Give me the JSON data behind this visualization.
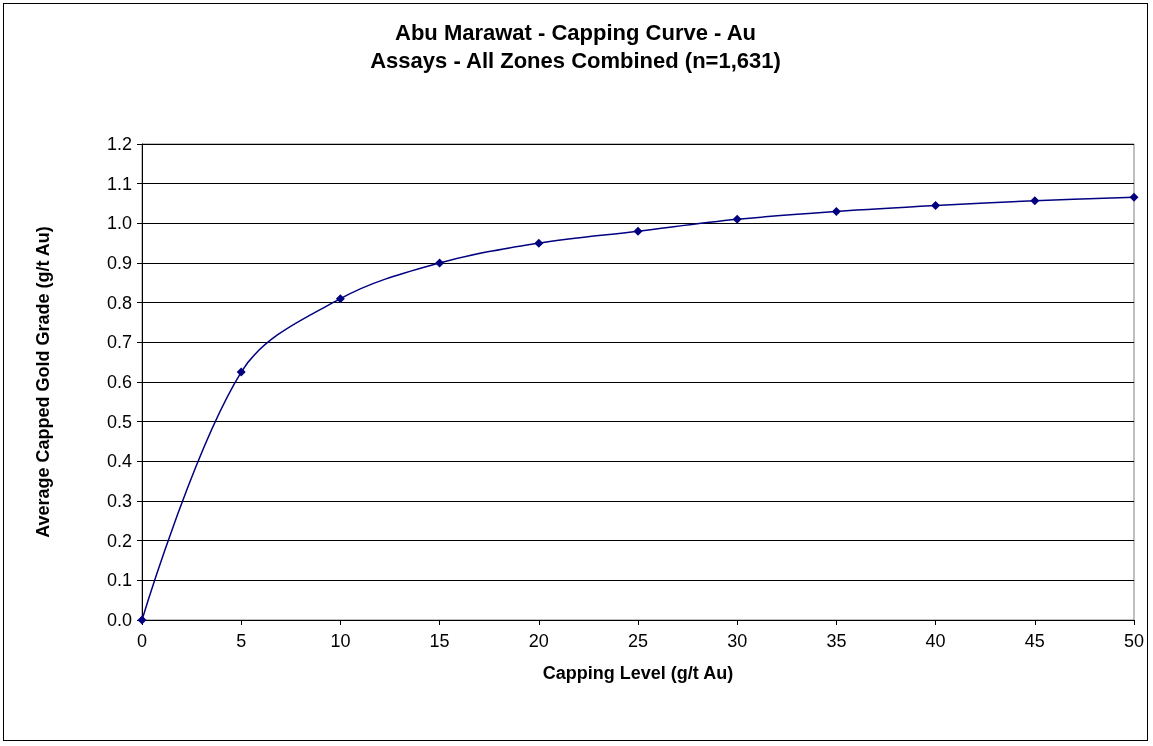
{
  "chart_data": {
    "type": "line",
    "title": "Abu Marawat - Capping Curve - Au",
    "subtitle": "Assays - All Zones Combined (n=1,631)",
    "xlabel": "Capping Level (g/t Au)",
    "ylabel": "Average Capped Gold Grade (g/t Au)",
    "x": [
      0,
      5,
      10,
      15,
      20,
      25,
      30,
      35,
      40,
      45,
      50
    ],
    "series": [
      {
        "color": "#000080",
        "values": [
          0,
          0.625,
          0.81,
          0.9,
          0.95,
          0.98,
          1.01,
          1.03,
          1.045,
          1.057,
          1.066
        ]
      }
    ],
    "xlim": [
      0,
      50
    ],
    "xticks": [
      0,
      5,
      10,
      15,
      20,
      25,
      30,
      35,
      40,
      45,
      50
    ],
    "ylim": [
      0,
      1.2
    ],
    "yticks": [
      {
        "value": 0,
        "label": "0.0"
      },
      {
        "value": 0.1,
        "label": "0.1"
      },
      {
        "value": 0.2,
        "label": "0.2"
      },
      {
        "value": 0.3,
        "label": "0.3"
      },
      {
        "value": 0.4,
        "label": "0.4"
      },
      {
        "value": 0.5,
        "label": "0.5"
      },
      {
        "value": 0.6,
        "label": "0.6"
      },
      {
        "value": 0.7,
        "label": "0.7"
      },
      {
        "value": 0.8,
        "label": "0.8"
      },
      {
        "value": 0.9,
        "label": "0.9"
      },
      {
        "value": 1,
        "label": "1.0"
      },
      {
        "value": 1.1,
        "label": "1.1"
      },
      {
        "value": 1.2,
        "label": "1.2"
      }
    ],
    "grid": "y",
    "marker": "diamond",
    "line_style": "solid"
  }
}
